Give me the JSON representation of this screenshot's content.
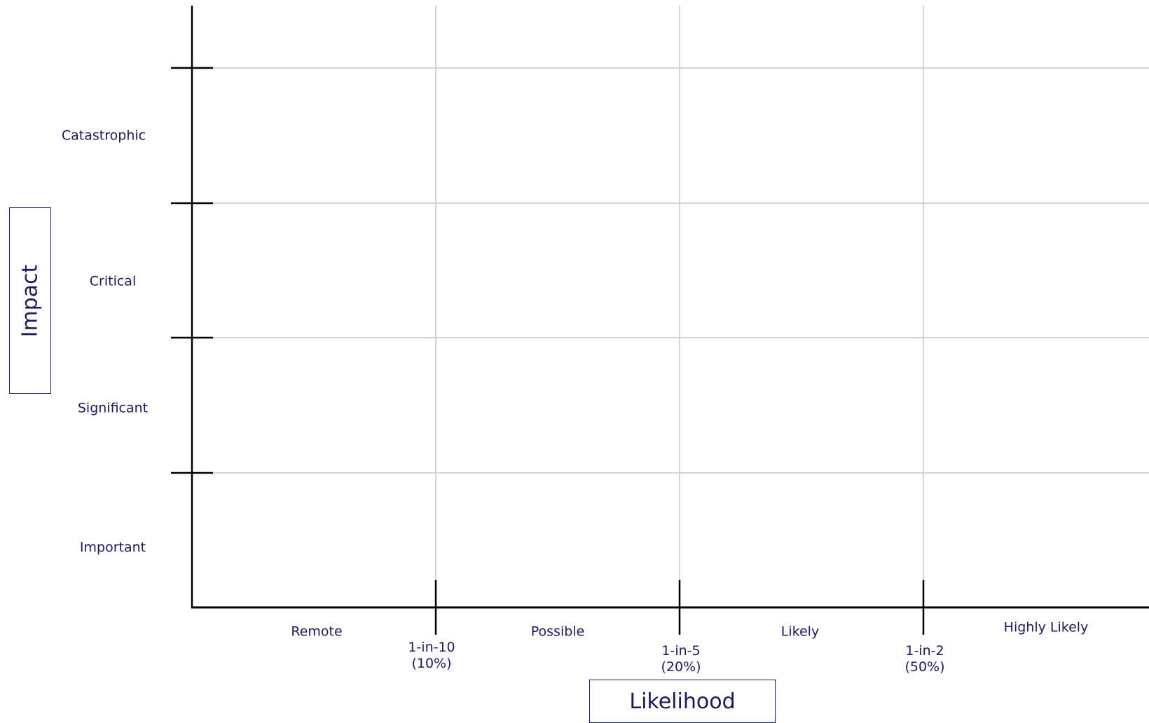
{
  "impact_title": "Impact",
  "likelihood_title": "Likelihood",
  "impact_levels": [
    "Catastrophic",
    "Critical",
    "Significant",
    "Important"
  ],
  "likelihood_bands": [
    "Remote",
    "Possible",
    "Likely",
    "Highly Likely"
  ],
  "likelihood_thresholds": [
    {
      "ratio": "1-in-10",
      "percent": "(10%)"
    },
    {
      "ratio": "1-in-5",
      "percent": "(20%)"
    },
    {
      "ratio": "1-in-2",
      "percent": "(50%)"
    }
  ],
  "colors": {
    "text": "#1a1a5e",
    "axis": "#000000",
    "grid": "#d4d4d4"
  }
}
